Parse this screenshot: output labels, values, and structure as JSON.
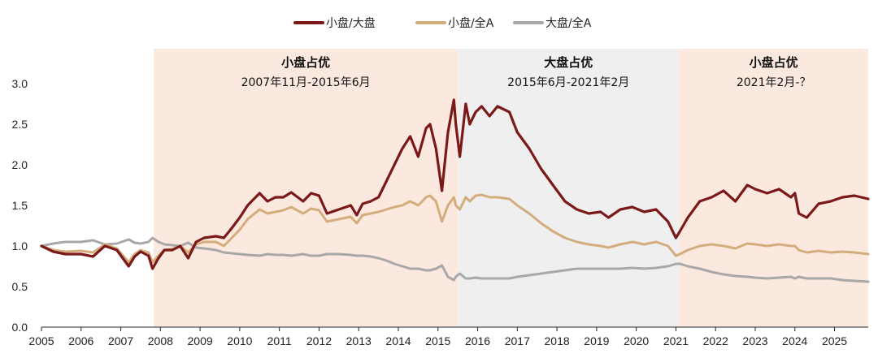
{
  "chart_data": {
    "type": "line",
    "ylim": [
      0.0,
      3.0
    ],
    "yticks": [
      "0.0",
      "0.5",
      "1.0",
      "1.5",
      "2.0",
      "2.5",
      "3.0"
    ],
    "xlim": [
      2005.0,
      2025.85
    ],
    "xticks": [
      "2005",
      "2006",
      "2007",
      "2008",
      "2009",
      "2010",
      "2011",
      "2012",
      "2013",
      "2014",
      "2015",
      "2016",
      "2017",
      "2018",
      "2019",
      "2020",
      "2021",
      "2022",
      "2023",
      "2024",
      "2025"
    ],
    "legend_position": "top-center",
    "grid": false,
    "bands": [
      {
        "start": 2007.83,
        "end": 2015.5,
        "color": "#fbe9df",
        "title": "小盘占优",
        "subtitle": "2007年11月-2015年6月"
      },
      {
        "start": 2015.5,
        "end": 2021.08,
        "color": "#efefef",
        "title": "大盘占优",
        "subtitle": "2015年6月-2021年2月"
      },
      {
        "start": 2021.08,
        "end": 2025.85,
        "color": "#fbe9df",
        "title": "小盘占优",
        "subtitle": "2021年2月-？"
      }
    ],
    "series": [
      {
        "name": "小盘/大盘",
        "color": "#7b1818",
        "x": [
          2005.0,
          2005.3,
          2005.6,
          2006.0,
          2006.3,
          2006.6,
          2006.9,
          2007.2,
          2007.35,
          2007.5,
          2007.7,
          2007.8,
          2007.95,
          2008.1,
          2008.3,
          2008.5,
          2008.7,
          2008.9,
          2009.1,
          2009.4,
          2009.6,
          2009.8,
          2010.0,
          2010.2,
          2010.5,
          2010.7,
          2010.9,
          2011.1,
          2011.3,
          2011.6,
          2011.8,
          2012.0,
          2012.2,
          2012.5,
          2012.8,
          2012.95,
          2013.1,
          2013.3,
          2013.5,
          2013.7,
          2013.9,
          2014.1,
          2014.3,
          2014.5,
          2014.7,
          2014.8,
          2014.95,
          2015.1,
          2015.25,
          2015.4,
          2015.45,
          2015.55,
          2015.7,
          2015.8,
          2015.95,
          2016.1,
          2016.3,
          2016.5,
          2016.8,
          2017.0,
          2017.3,
          2017.6,
          2017.9,
          2018.2,
          2018.5,
          2018.8,
          2019.1,
          2019.3,
          2019.6,
          2019.9,
          2020.2,
          2020.5,
          2020.8,
          2021.0,
          2021.1,
          2021.3,
          2021.6,
          2021.9,
          2022.2,
          2022.5,
          2022.8,
          2023.0,
          2023.3,
          2023.6,
          2023.9,
          2024.0,
          2024.1,
          2024.3,
          2024.6,
          2024.9,
          2025.2,
          2025.5,
          2025.85
        ],
        "values": [
          1.0,
          0.93,
          0.9,
          0.9,
          0.87,
          1.0,
          0.95,
          0.75,
          0.87,
          0.93,
          0.88,
          0.72,
          0.85,
          0.95,
          0.95,
          1.0,
          0.85,
          1.05,
          1.1,
          1.12,
          1.1,
          1.22,
          1.35,
          1.5,
          1.65,
          1.55,
          1.6,
          1.6,
          1.66,
          1.55,
          1.65,
          1.62,
          1.4,
          1.45,
          1.5,
          1.38,
          1.52,
          1.55,
          1.6,
          1.8,
          2.0,
          2.2,
          2.35,
          2.1,
          2.45,
          2.5,
          2.2,
          1.68,
          2.4,
          2.8,
          2.5,
          2.1,
          2.75,
          2.5,
          2.65,
          2.72,
          2.6,
          2.72,
          2.65,
          2.4,
          2.2,
          1.95,
          1.75,
          1.55,
          1.45,
          1.4,
          1.42,
          1.35,
          1.45,
          1.48,
          1.42,
          1.45,
          1.3,
          1.1,
          1.18,
          1.35,
          1.55,
          1.6,
          1.68,
          1.55,
          1.75,
          1.7,
          1.65,
          1.7,
          1.6,
          1.65,
          1.4,
          1.35,
          1.52,
          1.55,
          1.6,
          1.62,
          1.58
        ]
      },
      {
        "name": "小盘/全A",
        "color": "#d4ad7c",
        "x": [
          2005.0,
          2005.3,
          2005.6,
          2006.0,
          2006.3,
          2006.6,
          2006.9,
          2007.2,
          2007.35,
          2007.5,
          2007.7,
          2007.8,
          2007.95,
          2008.1,
          2008.3,
          2008.5,
          2008.7,
          2008.9,
          2009.1,
          2009.4,
          2009.6,
          2009.8,
          2010.0,
          2010.2,
          2010.5,
          2010.7,
          2010.9,
          2011.1,
          2011.3,
          2011.6,
          2011.8,
          2012.0,
          2012.2,
          2012.5,
          2012.8,
          2012.95,
          2013.1,
          2013.3,
          2013.5,
          2013.7,
          2013.9,
          2014.1,
          2014.3,
          2014.5,
          2014.7,
          2014.8,
          2014.95,
          2015.1,
          2015.25,
          2015.4,
          2015.45,
          2015.55,
          2015.7,
          2015.8,
          2015.95,
          2016.1,
          2016.3,
          2016.5,
          2016.8,
          2017.0,
          2017.3,
          2017.6,
          2017.9,
          2018.2,
          2018.5,
          2018.8,
          2019.1,
          2019.3,
          2019.6,
          2019.9,
          2020.2,
          2020.5,
          2020.8,
          2021.0,
          2021.1,
          2021.3,
          2021.6,
          2021.9,
          2022.2,
          2022.5,
          2022.8,
          2023.0,
          2023.3,
          2023.6,
          2023.9,
          2024.0,
          2024.1,
          2024.3,
          2024.6,
          2024.9,
          2025.2,
          2025.5,
          2025.85
        ],
        "values": [
          1.0,
          0.95,
          0.93,
          0.94,
          0.92,
          1.02,
          0.97,
          0.8,
          0.9,
          0.95,
          0.92,
          0.8,
          0.88,
          0.95,
          0.96,
          1.0,
          0.92,
          1.02,
          1.05,
          1.05,
          1.0,
          1.1,
          1.2,
          1.33,
          1.45,
          1.4,
          1.42,
          1.44,
          1.48,
          1.4,
          1.46,
          1.44,
          1.3,
          1.33,
          1.36,
          1.28,
          1.38,
          1.4,
          1.42,
          1.45,
          1.48,
          1.5,
          1.55,
          1.5,
          1.6,
          1.62,
          1.55,
          1.3,
          1.5,
          1.6,
          1.5,
          1.45,
          1.6,
          1.55,
          1.62,
          1.63,
          1.6,
          1.6,
          1.58,
          1.5,
          1.4,
          1.28,
          1.18,
          1.1,
          1.05,
          1.02,
          1.0,
          0.98,
          1.02,
          1.05,
          1.02,
          1.05,
          1.0,
          0.88,
          0.9,
          0.95,
          1.0,
          1.02,
          1.0,
          0.97,
          1.03,
          1.02,
          1.0,
          1.02,
          1.0,
          1.0,
          0.95,
          0.92,
          0.94,
          0.92,
          0.93,
          0.92,
          0.9
        ]
      },
      {
        "name": "大盘/全A",
        "color": "#a8a8a8",
        "x": [
          2005.0,
          2005.3,
          2005.6,
          2006.0,
          2006.3,
          2006.6,
          2006.9,
          2007.2,
          2007.35,
          2007.5,
          2007.7,
          2007.8,
          2007.95,
          2008.1,
          2008.3,
          2008.5,
          2008.7,
          2008.9,
          2009.1,
          2009.4,
          2009.6,
          2009.8,
          2010.0,
          2010.2,
          2010.5,
          2010.7,
          2010.9,
          2011.1,
          2011.3,
          2011.6,
          2011.8,
          2012.0,
          2012.2,
          2012.5,
          2012.8,
          2012.95,
          2013.1,
          2013.3,
          2013.5,
          2013.7,
          2013.9,
          2014.1,
          2014.3,
          2014.5,
          2014.7,
          2014.8,
          2014.95,
          2015.1,
          2015.25,
          2015.4,
          2015.45,
          2015.55,
          2015.7,
          2015.8,
          2015.95,
          2016.1,
          2016.3,
          2016.5,
          2016.8,
          2017.0,
          2017.3,
          2017.6,
          2017.9,
          2018.2,
          2018.5,
          2018.8,
          2019.1,
          2019.3,
          2019.6,
          2019.9,
          2020.2,
          2020.5,
          2020.8,
          2021.0,
          2021.1,
          2021.3,
          2021.6,
          2021.9,
          2022.2,
          2022.5,
          2022.8,
          2023.0,
          2023.3,
          2023.6,
          2023.9,
          2024.0,
          2024.1,
          2024.3,
          2024.6,
          2024.9,
          2025.2,
          2025.5,
          2025.85
        ],
        "values": [
          1.0,
          1.03,
          1.05,
          1.05,
          1.07,
          1.02,
          1.03,
          1.08,
          1.04,
          1.03,
          1.05,
          1.1,
          1.05,
          1.02,
          1.01,
          1.0,
          1.04,
          0.98,
          0.97,
          0.95,
          0.92,
          0.91,
          0.9,
          0.89,
          0.88,
          0.9,
          0.89,
          0.89,
          0.88,
          0.9,
          0.88,
          0.88,
          0.9,
          0.9,
          0.89,
          0.88,
          0.88,
          0.87,
          0.85,
          0.82,
          0.78,
          0.75,
          0.72,
          0.72,
          0.7,
          0.7,
          0.72,
          0.76,
          0.62,
          0.58,
          0.62,
          0.66,
          0.6,
          0.6,
          0.61,
          0.6,
          0.6,
          0.6,
          0.6,
          0.62,
          0.64,
          0.66,
          0.68,
          0.7,
          0.72,
          0.72,
          0.72,
          0.72,
          0.72,
          0.73,
          0.72,
          0.73,
          0.75,
          0.78,
          0.78,
          0.75,
          0.72,
          0.68,
          0.65,
          0.63,
          0.62,
          0.61,
          0.6,
          0.61,
          0.62,
          0.6,
          0.62,
          0.6,
          0.6,
          0.6,
          0.58,
          0.57,
          0.56
        ]
      }
    ]
  }
}
